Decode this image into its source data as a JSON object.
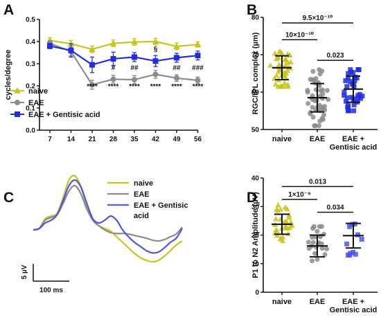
{
  "colors": {
    "naive": "#c8c41a",
    "eae": "#8c8c8c",
    "gentisic": "#1f2fe0",
    "gentisic_light": "#5560f0",
    "axis": "#111111"
  },
  "chart_data": [
    {
      "panel": "A",
      "type": "line",
      "ylabel": "cycles/degree",
      "xlabel": "",
      "x": [
        "7",
        "14",
        "21",
        "28",
        "35",
        "42",
        "49",
        "56"
      ],
      "ylim": [
        0.0,
        0.5
      ],
      "yticks": [
        "0.0",
        "0.1",
        "0.2",
        "0.3",
        "0.4",
        "0.5"
      ],
      "legend_position": "bottom-left",
      "series": [
        {
          "name": "naive",
          "marker": "triangle",
          "color": "#c8c41a",
          "values": [
            0.405,
            0.39,
            0.365,
            0.392,
            0.398,
            0.4,
            0.378,
            0.387
          ],
          "errors": [
            0.012,
            0.015,
            0.015,
            0.015,
            0.015,
            0.015,
            0.015,
            0.012
          ]
        },
        {
          "name": "EAE",
          "marker": "circle",
          "color": "#8c8c8c",
          "values": [
            0.392,
            0.355,
            0.205,
            0.23,
            0.228,
            0.252,
            0.235,
            0.225
          ],
          "errors": [
            0.012,
            0.02,
            0.02,
            0.018,
            0.018,
            0.018,
            0.015,
            0.015
          ]
        },
        {
          "name": "EAE + Gentisic acid",
          "marker": "square",
          "color": "#1f2fe0",
          "values": [
            0.38,
            0.36,
            0.295,
            0.322,
            0.33,
            0.312,
            0.327,
            0.337
          ],
          "errors": [
            0.012,
            0.03,
            0.035,
            0.03,
            0.02,
            0.025,
            0.02,
            0.02
          ]
        }
      ],
      "annotations": [
        {
          "x": "21",
          "text": "****",
          "row": "low"
        },
        {
          "x": "28",
          "text": "****",
          "row": "low"
        },
        {
          "x": "35",
          "text": "****",
          "row": "low"
        },
        {
          "x": "42",
          "text": "****",
          "row": "low"
        },
        {
          "x": "49",
          "text": "****",
          "row": "low"
        },
        {
          "x": "56",
          "text": "****",
          "row": "low"
        },
        {
          "x": "28",
          "text": "#",
          "row": "mid"
        },
        {
          "x": "35",
          "text": "##",
          "row": "mid"
        },
        {
          "x": "49",
          "text": "##",
          "row": "mid"
        },
        {
          "x": "56",
          "text": "###",
          "row": "mid"
        },
        {
          "x": "42",
          "text": "§",
          "row": "high"
        }
      ]
    },
    {
      "panel": "B",
      "type": "scatter",
      "ylabel": "RGC/IPL complex (µm)",
      "categories": [
        "naive",
        "EAE",
        "EAE +\nGentisic acid"
      ],
      "ylim": [
        50,
        80
      ],
      "yticks": [
        "50",
        "60",
        "70",
        "80"
      ],
      "groups": [
        {
          "name": "naive",
          "marker": "triangle",
          "color": "#c8c41a",
          "mean": 66.5,
          "sd": 3.2,
          "n": 45,
          "min": 61.5,
          "max": 72.5
        },
        {
          "name": "EAE",
          "marker": "circle",
          "color": "#8c8c8c",
          "mean": 58.5,
          "sd": 3.8,
          "n": 50,
          "min": 51.0,
          "max": 66.0
        },
        {
          "name": "EAE + Gentisic acid",
          "marker": "square",
          "color": "#1f2fe0",
          "mean": 60.8,
          "sd": 3.5,
          "n": 40,
          "min": 55.0,
          "max": 66.0
        }
      ],
      "comparisons": [
        {
          "from": 0,
          "to": 2,
          "label": "9.5×10⁻¹⁰",
          "level": 78.5
        },
        {
          "from": 0,
          "to": 1,
          "label": "10×10⁻¹⁰",
          "level": 74.0
        },
        {
          "from": 1,
          "to": 2,
          "label": "0.023",
          "level": 68.5
        }
      ]
    },
    {
      "panel": "C",
      "type": "line",
      "legend": [
        "naive",
        "EAE",
        "EAE + Gentisic",
        "acid"
      ],
      "scale_y": "5 µV",
      "scale_x": "100 ms",
      "traces": [
        {
          "name": "naive",
          "color": "#c8c41a",
          "x": [
            0,
            4,
            8,
            12,
            16,
            20,
            24,
            28,
            32,
            36,
            40,
            44,
            48,
            52,
            56,
            60,
            64,
            68,
            72,
            76,
            80,
            84,
            88,
            92,
            96,
            100
          ],
          "y": [
            0.5,
            1.0,
            4.5,
            5.5,
            6.5,
            12.0,
            18.5,
            20.0,
            16.0,
            9.0,
            4.0,
            2.0,
            1.0,
            0.0,
            -2.0,
            -4.0,
            -6.0,
            -8.0,
            -9.5,
            -10.5,
            -11.0,
            -10.5,
            -9.0,
            -7.0,
            -5.0,
            -3.5
          ]
        },
        {
          "name": "EAE",
          "color": "#8c8c8c",
          "x": [
            0,
            4,
            8,
            12,
            16,
            20,
            24,
            28,
            32,
            36,
            40,
            44,
            48,
            52,
            56,
            60,
            64,
            68,
            72,
            76,
            80,
            84,
            88,
            92,
            96,
            100
          ],
          "y": [
            0.5,
            1.0,
            4.0,
            5.0,
            6.0,
            10.0,
            14.5,
            16.5,
            13.5,
            8.0,
            4.0,
            2.0,
            0.5,
            -0.5,
            -0.8,
            -0.8,
            -1.0,
            -1.5,
            -2.0,
            -2.5,
            -3.2,
            -3.5,
            -3.0,
            -2.0,
            -1.0,
            1.5
          ]
        },
        {
          "name": "EAE + Gentisic acid",
          "color": "#4a55e8",
          "x": [
            0,
            4,
            8,
            12,
            16,
            20,
            24,
            28,
            32,
            36,
            40,
            44,
            48,
            52,
            56,
            60,
            64,
            68,
            72,
            76,
            80,
            84,
            88,
            92,
            96,
            100
          ],
          "y": [
            0.5,
            1.0,
            3.0,
            4.0,
            6.0,
            11.0,
            16.5,
            18.5,
            16.0,
            10.0,
            4.5,
            3.0,
            4.0,
            5.5,
            4.0,
            0.5,
            -2.0,
            -4.0,
            -5.5,
            -7.0,
            -7.8,
            -7.5,
            -6.0,
            -4.0,
            -2.5,
            1.0
          ]
        }
      ]
    },
    {
      "panel": "D",
      "type": "scatter",
      "ylabel": "P1 to N2 Amplitude (µV)",
      "categories": [
        "naive",
        "EAE",
        "EAE +\nGentisic acid"
      ],
      "ylim": [
        0,
        40
      ],
      "yticks": [
        "0",
        "10",
        "20",
        "30",
        "40"
      ],
      "groups": [
        {
          "name": "naive",
          "marker": "triangle",
          "color": "#c8c41a",
          "mean": 23.8,
          "sd": 3.5,
          "n": 30,
          "min": 18.0,
          "max": 30.5
        },
        {
          "name": "EAE",
          "marker": "circle",
          "color": "#8c8c8c",
          "mean": 16.2,
          "sd": 3.8,
          "n": 24,
          "min": 11.0,
          "max": 23.0
        },
        {
          "name": "EAE + Gentisic acid",
          "marker": "square",
          "color": "#4a55e8",
          "mean": 19.8,
          "sd": 4.3,
          "n": 11,
          "min": 13.0,
          "max": 26.5
        }
      ],
      "comparisons": [
        {
          "from": 0,
          "to": 2,
          "label": "0.013",
          "level": 37.0
        },
        {
          "from": 0,
          "to": 1,
          "label": "1×10⁻⁹",
          "level": 32.5
        },
        {
          "from": 1,
          "to": 2,
          "label": "0.034",
          "level": 28.0
        }
      ]
    }
  ]
}
